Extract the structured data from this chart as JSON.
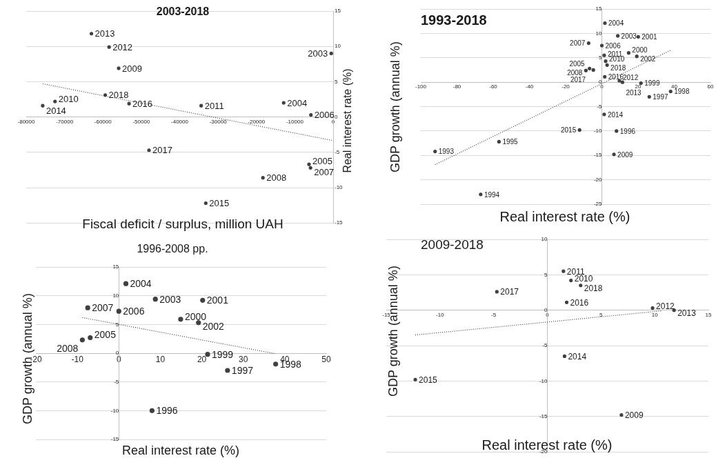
{
  "chart_data": [
    {
      "type": "scatter",
      "title": "2003-2018",
      "xlabel": "Fiscal deficit / surplus, million UAH",
      "ylabel": "Real interest rate (%)",
      "xlim": [
        -80000,
        0
      ],
      "ylim": [
        -15,
        15
      ],
      "xticks": [
        -80000,
        -70000,
        -60000,
        -50000,
        -40000,
        -30000,
        -20000,
        -10000,
        0
      ],
      "yticks": [
        -15,
        -10,
        -5,
        0,
        5,
        10,
        15
      ],
      "grid": "y",
      "series": [
        {
          "type": "scatter",
          "color": "#404040",
          "marker": "circle",
          "x": [
            -500,
            -12900,
            -6300,
            -5800,
            -5900,
            -18300,
            -55900,
            -72500,
            -34400,
            -58400,
            -63000,
            -75700,
            -33200,
            -53200,
            -48000,
            -59400
          ],
          "values": [
            9.0,
            2.0,
            -6.7,
            0.3,
            -7.2,
            -8.6,
            6.9,
            2.2,
            1.6,
            9.9,
            11.8,
            1.6,
            -12.2,
            1.9,
            -4.7,
            3.1
          ]
        },
        {
          "type": "line",
          "color": "#404040",
          "marker": "none",
          "line_style": "dotted",
          "x": [
            -75700,
            -400
          ],
          "values": [
            4.7,
            -3.3
          ]
        }
      ],
      "annotations": [
        {
          "text": "2003",
          "x": -500,
          "y": 9.0
        },
        {
          "text": "2004",
          "x": -12900,
          "y": 2.0
        },
        {
          "text": "2005",
          "x": -6300,
          "y": -6.7
        },
        {
          "text": "2006",
          "x": -5800,
          "y": 0.3
        },
        {
          "text": "2007",
          "x": -5900,
          "y": -7.2
        },
        {
          "text": "2008",
          "x": -18300,
          "y": -8.6
        },
        {
          "text": "2009",
          "x": -55900,
          "y": 6.9
        },
        {
          "text": "2010",
          "x": -72500,
          "y": 2.2
        },
        {
          "text": "2011",
          "x": -34400,
          "y": 1.6
        },
        {
          "text": "2012",
          "x": -58400,
          "y": 9.9
        },
        {
          "text": "2013",
          "x": -63000,
          "y": 11.8
        },
        {
          "text": "2014",
          "x": -75700,
          "y": 1.6
        },
        {
          "text": "2015",
          "x": -33200,
          "y": -12.2
        },
        {
          "text": "2016",
          "x": -53200,
          "y": 1.9
        },
        {
          "text": "2017",
          "x": -48000,
          "y": -4.7
        },
        {
          "text": "2018",
          "x": -59400,
          "y": 3.1
        }
      ]
    },
    {
      "type": "scatter",
      "title": "1993-2018",
      "xlabel": "Real interest rate (%)",
      "ylabel": "GDP growth (annual %)",
      "xlim": [
        -100,
        60
      ],
      "ylim": [
        -25,
        15
      ],
      "xticks": [
        -100,
        -80,
        -60,
        -40,
        -20,
        0,
        20,
        40,
        60
      ],
      "yticks": [
        -25,
        -20,
        -15,
        -10,
        -5,
        0,
        5,
        10,
        15
      ],
      "grid": "y",
      "series": [
        {
          "type": "scatter",
          "color": "#404040",
          "marker": "circle",
          "x": [
            -92.1,
            -66.9,
            -56.8,
            8.1,
            26.2,
            38,
            21.6,
            14.8,
            20.1,
            19.3,
            8.8,
            1.7,
            -6.8,
            0,
            -7.3,
            -8.8,
            6.7,
            2.1,
            1.3,
            9.7,
            11.4,
            1.3,
            -12.3,
            1.6,
            -4.7,
            2.9
          ],
          "values": [
            -14.2,
            -23.0,
            -12.2,
            -10.0,
            -3.0,
            -1.9,
            -0.2,
            6.0,
            9.3,
            5.3,
            9.5,
            12.1,
            2.8,
            7.5,
            8.0,
            2.4,
            -14.8,
            4.3,
            5.5,
            0.3,
            0,
            -6.6,
            -9.8,
            1.1,
            2.5,
            3.5
          ]
        },
        {
          "type": "line",
          "color": "#404040",
          "marker": "none",
          "line_style": "dotted",
          "x": [
            -92.1,
            37.8
          ],
          "values": [
            -16.9,
            6.5
          ]
        }
      ],
      "annotations": [
        {
          "text": "1993",
          "x": -92.1,
          "y": -14.2
        },
        {
          "text": "1994",
          "x": -66.9,
          "y": -23.0
        },
        {
          "text": "1995",
          "x": -56.8,
          "y": -12.2
        },
        {
          "text": "1996",
          "x": 8.1,
          "y": -10.0
        },
        {
          "text": "1997",
          "x": 26.2,
          "y": -3.0
        },
        {
          "text": "1998",
          "x": 38,
          "y": -1.9
        },
        {
          "text": "1999",
          "x": 21.6,
          "y": -0.2
        },
        {
          "text": "2000",
          "x": 14.8,
          "y": 6.0
        },
        {
          "text": "2001",
          "x": 20.1,
          "y": 9.3
        },
        {
          "text": "2002",
          "x": 19.3,
          "y": 5.3
        },
        {
          "text": "2003",
          "x": 8.8,
          "y": 9.5
        },
        {
          "text": "2004",
          "x": 1.7,
          "y": 12.1
        },
        {
          "text": "2005",
          "x": -6.8,
          "y": 2.8
        },
        {
          "text": "2006",
          "x": 0,
          "y": 7.5
        },
        {
          "text": "2007",
          "x": -7.3,
          "y": 8.0
        },
        {
          "text": "2008",
          "x": -8.8,
          "y": 2.4
        },
        {
          "text": "2009",
          "x": 6.7,
          "y": -14.8
        },
        {
          "text": "2010",
          "x": 2.1,
          "y": 4.3
        },
        {
          "text": "2011",
          "x": 1.3,
          "y": 5.5
        },
        {
          "text": "2012",
          "x": 9.7,
          "y": 0.3
        },
        {
          "text": "2013",
          "x": 11.4,
          "y": 0
        },
        {
          "text": "2014",
          "x": 1.3,
          "y": -6.6
        },
        {
          "text": "2015",
          "x": -12.3,
          "y": -9.8
        },
        {
          "text": "2016",
          "x": 1.6,
          "y": 1.1
        },
        {
          "text": "2017",
          "x": -4.7,
          "y": 2.5
        },
        {
          "text": "2018",
          "x": 2.9,
          "y": 3.5
        }
      ]
    },
    {
      "type": "scatter",
      "title": "1996-2008 pp.",
      "xlabel": "Real interest rate (%)",
      "ylabel": "GDP growth (annual %)",
      "xlim": [
        -20,
        50
      ],
      "ylim": [
        -15,
        15
      ],
      "xticks": [
        -20,
        -10,
        0,
        10,
        20,
        30,
        40,
        50
      ],
      "yticks": [
        -15,
        -10,
        -5,
        0,
        5,
        10,
        15
      ],
      "grid": "y",
      "series": [
        {
          "type": "scatter",
          "color": "#404040",
          "marker": "circle",
          "x": [
            8.0,
            26.2,
            37.8,
            21.4,
            14.9,
            20.2,
            19.2,
            8.8,
            1.7,
            -6.9,
            0,
            -7.5,
            -8.8
          ],
          "values": [
            -10.0,
            -3.0,
            -1.9,
            -0.2,
            5.9,
            9.2,
            5.3,
            9.4,
            12.1,
            2.7,
            7.3,
            7.9,
            2.3
          ]
        },
        {
          "type": "line",
          "color": "#404040",
          "marker": "none",
          "line_style": "dotted",
          "x": [
            -8.8,
            37.8
          ],
          "values": [
            6.2,
            -0.1
          ]
        }
      ],
      "annotations": [
        {
          "text": "1996",
          "x": 8.0,
          "y": -10.0
        },
        {
          "text": "1997",
          "x": 26.2,
          "y": -3.0
        },
        {
          "text": "1998",
          "x": 37.8,
          "y": -1.9
        },
        {
          "text": "1999",
          "x": 21.4,
          "y": -0.2
        },
        {
          "text": "2000",
          "x": 14.9,
          "y": 5.9
        },
        {
          "text": "2001",
          "x": 20.2,
          "y": 9.2
        },
        {
          "text": "2002",
          "x": 19.2,
          "y": 5.3
        },
        {
          "text": "2003",
          "x": 8.8,
          "y": 9.4
        },
        {
          "text": "2004",
          "x": 1.7,
          "y": 12.1
        },
        {
          "text": "2005",
          "x": -6.9,
          "y": 2.7
        },
        {
          "text": "2006",
          "x": 0,
          "y": 7.3
        },
        {
          "text": "2007",
          "x": -7.5,
          "y": 7.9
        },
        {
          "text": "2008",
          "x": -8.8,
          "y": 2.3
        }
      ]
    },
    {
      "type": "scatter",
      "title": "2009-2018",
      "xlabel": "Real interest rate (%)",
      "ylabel": "GDP growth (annual %)",
      "xlim": [
        -15,
        15
      ],
      "ylim": [
        -20,
        10
      ],
      "xticks": [
        -15,
        -10,
        -5,
        0,
        5,
        10,
        15
      ],
      "yticks": [
        -20,
        -15,
        -10,
        -5,
        0,
        5,
        10
      ],
      "grid": "y",
      "series": [
        {
          "type": "scatter",
          "color": "#404040",
          "marker": "circle",
          "x": [
            6.9,
            2.2,
            1.5,
            9.8,
            11.8,
            1.6,
            -12.3,
            1.8,
            -4.7,
            3.1
          ],
          "values": [
            -14.8,
            4.2,
            5.5,
            0.3,
            0,
            -6.5,
            -9.8,
            1.1,
            2.6,
            3.5
          ]
        },
        {
          "type": "line",
          "color": "#404040",
          "marker": "none",
          "line_style": "dotted",
          "x": [
            -12.3,
            10.6
          ],
          "values": [
            -3.5,
            -0.1
          ]
        }
      ],
      "annotations": [
        {
          "text": "2009",
          "x": 6.9,
          "y": -14.8
        },
        {
          "text": "2010",
          "x": 2.2,
          "y": 4.2
        },
        {
          "text": "2011",
          "x": 1.5,
          "y": 5.5
        },
        {
          "text": "2012",
          "x": 9.8,
          "y": 0.3
        },
        {
          "text": "2013",
          "x": 11.8,
          "y": 0
        },
        {
          "text": "2014",
          "x": 1.6,
          "y": -6.5
        },
        {
          "text": "2015",
          "x": -12.3,
          "y": -9.8
        },
        {
          "text": "2016",
          "x": 1.8,
          "y": 1.1
        },
        {
          "text": "2017",
          "x": -4.7,
          "y": 2.6
        },
        {
          "text": "2018",
          "x": 3.1,
          "y": 3.5
        }
      ]
    }
  ]
}
